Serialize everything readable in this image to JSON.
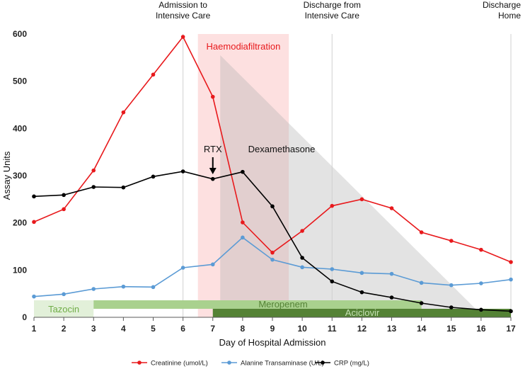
{
  "chart_data": {
    "type": "line",
    "xlabel": "Day of Hospital Admission",
    "ylabel": "Assay Units",
    "xlim": [
      1,
      17
    ],
    "ylim": [
      0,
      600
    ],
    "x_ticks": [
      "1",
      "2",
      "3",
      "4",
      "5",
      "6",
      "7",
      "8",
      "9",
      "10",
      "11",
      "12",
      "13",
      "14",
      "15",
      "16",
      "17"
    ],
    "y_ticks": [
      "0",
      "100",
      "200",
      "300",
      "400",
      "500",
      "600"
    ],
    "series": [
      {
        "name": "Creatinine (umol/L)",
        "color": "#e8191c",
        "x": [
          1,
          2,
          3,
          4,
          5,
          6,
          7,
          8,
          9,
          10,
          11,
          12,
          13,
          14,
          15,
          16,
          17
        ],
        "values": [
          202,
          229,
          311,
          434,
          514,
          594,
          467,
          201,
          137,
          183,
          236,
          250,
          231,
          180,
          162,
          143,
          117
        ]
      },
      {
        "name": "Alanine Transaminase (U/L)",
        "color": "#5b9bd5",
        "x": [
          1,
          2,
          3,
          4,
          5,
          6,
          7,
          8,
          9,
          10,
          11,
          12,
          13,
          14,
          15,
          16,
          17
        ],
        "values": [
          44,
          49,
          60,
          65,
          64,
          105,
          112,
          169,
          122,
          106,
          102,
          94,
          92,
          73,
          68,
          72,
          80
        ]
      },
      {
        "name": "CRP (mg/L)",
        "color": "#000000",
        "x": [
          1,
          2,
          3,
          4,
          5,
          6,
          7,
          8,
          9,
          10,
          11,
          12,
          13,
          14,
          15,
          16,
          17
        ],
        "values": [
          256,
          259,
          276,
          275,
          298,
          309,
          293,
          308,
          235,
          126,
          76,
          53,
          42,
          30,
          21,
          16,
          13
        ]
      }
    ],
    "events": [
      {
        "label_lines": [
          "Admission to",
          "Intensive Care"
        ],
        "day": 6
      },
      {
        "label_lines": [
          "Discharge from",
          "Intensive Care"
        ],
        "day": 11
      },
      {
        "label_lines": [
          "Discharge",
          "Home"
        ],
        "day": 17
      }
    ],
    "regions": {
      "haemodiafiltration": {
        "label": "Haemodiafiltration",
        "day_start": 6.5,
        "day_end": 9.55,
        "color": "#fde0e0",
        "text_color": "#e8191c"
      },
      "dexamethasone": {
        "label": "Dexamethasone",
        "day_start": 7.25,
        "day_end": 16.1,
        "y_start": 555
      }
    },
    "annotations": {
      "rtx": {
        "label": "RTX",
        "day": 7
      }
    },
    "treatments": [
      {
        "label": "Tazocin",
        "day_start": 1,
        "day_end": 3,
        "band": "upper",
        "fill": "#e2f0d9",
        "text_color": "#70ad47"
      },
      {
        "label": "Meropenem",
        "day_start": 3,
        "day_end": 14,
        "band": "upper",
        "fill": "#a9d18e",
        "text_color": "#548235"
      },
      {
        "label": "Aciclovir",
        "day_start": 7,
        "day_end": 17,
        "band": "lower",
        "fill": "#548235",
        "text_color": "#c5e0b4"
      }
    ]
  }
}
